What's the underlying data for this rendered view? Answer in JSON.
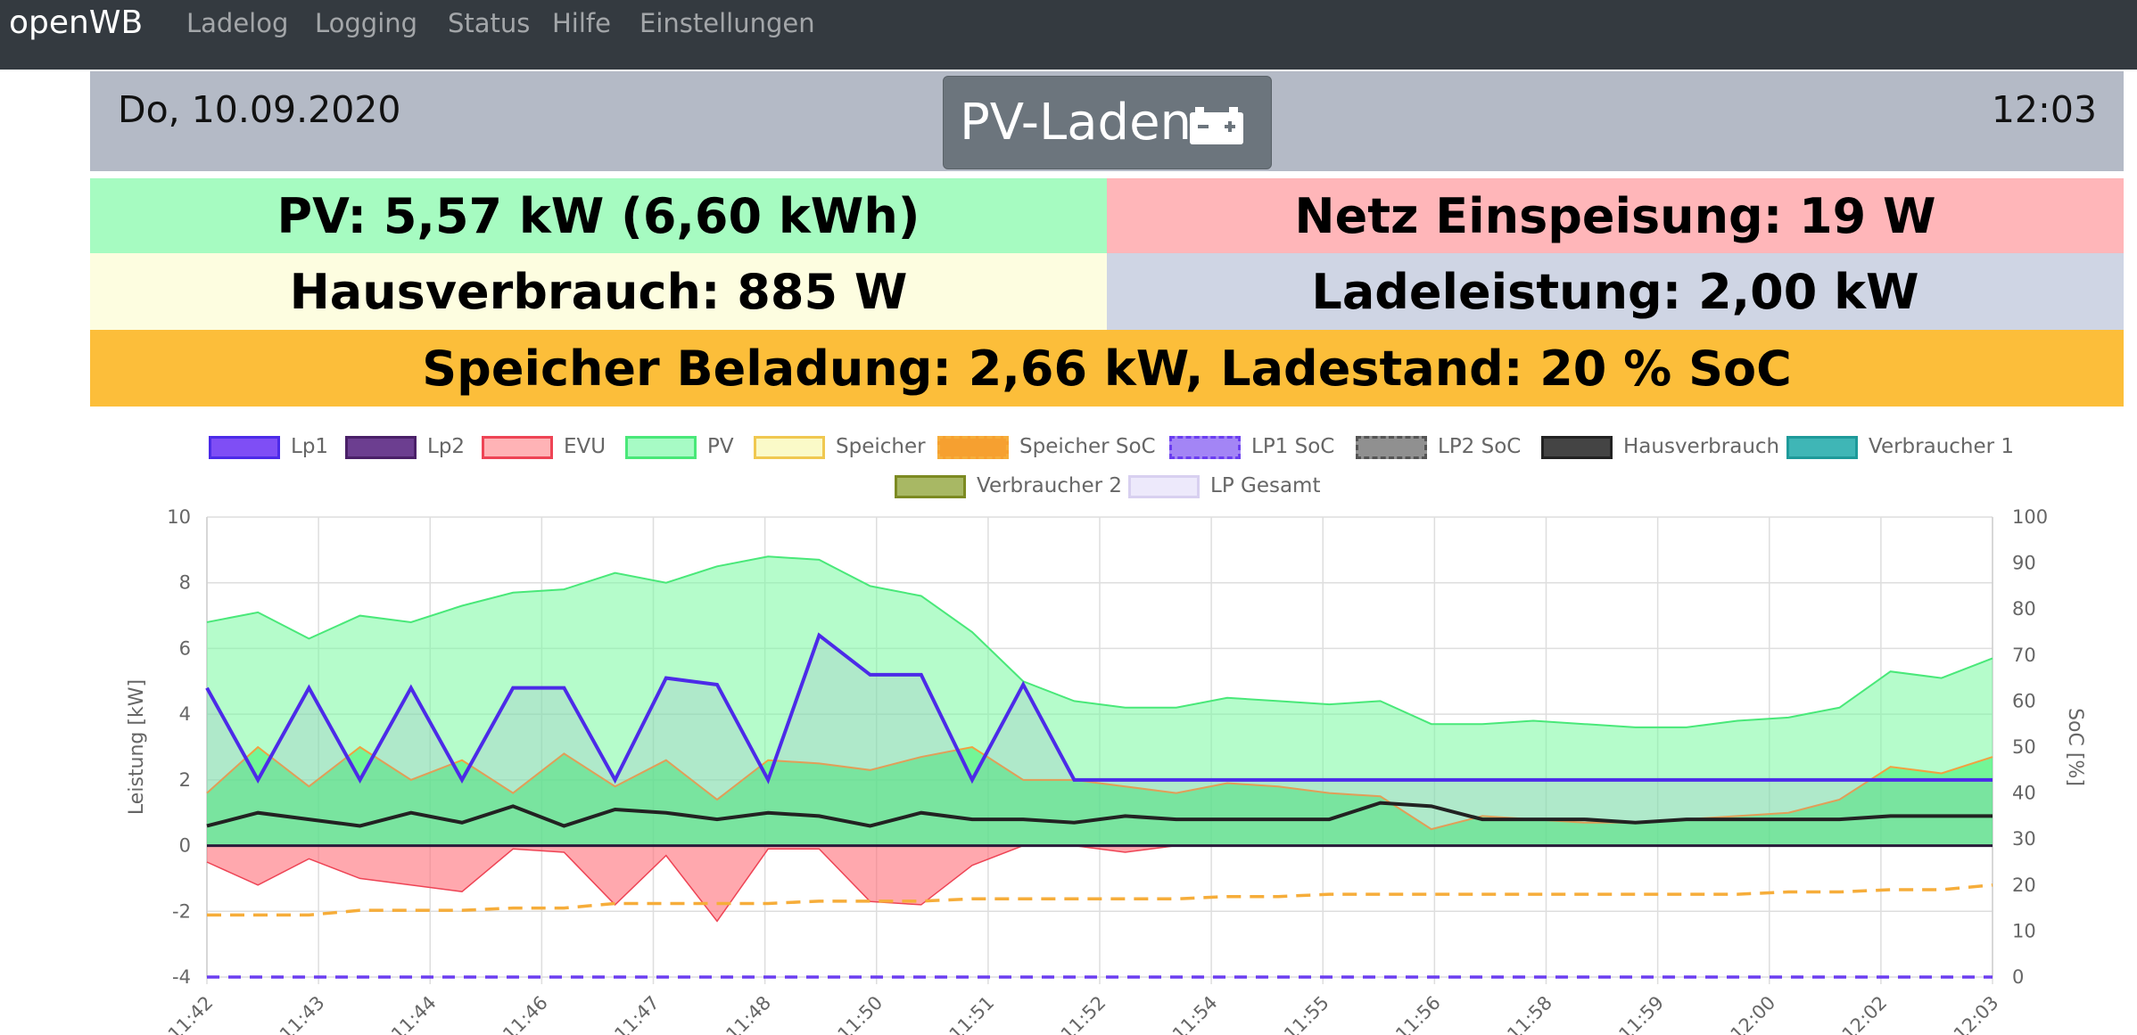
{
  "nav": {
    "brand": "openWB",
    "items": [
      "Ladelog",
      "Logging",
      "Status",
      "Hilfe",
      "Einstellungen"
    ]
  },
  "header": {
    "date": "Do, 10.09.2020",
    "time": "12:03",
    "mode_label": "PV-Laden",
    "mode_icon": "car-battery-icon"
  },
  "tiles": {
    "pv": "PV: 5,57 kW (6,60 kWh)",
    "netz": "Netz Einspeisung: 19 W",
    "haus": "Hausverbrauch: 885 W",
    "ladeleistung": "Ladeleistung: 2,00 kW",
    "speicher": "Speicher Beladung: 2,66 kW, Ladestand: 20 % SoC"
  },
  "colors": {
    "navbar": "#343a40",
    "header": "#b4bac6",
    "pv_tile": "#a6fbc1",
    "netz_tile": "#ffb6b9",
    "haus_tile": "#fdfde0",
    "lade_tile": "#cfd5e4",
    "speicher_tile": "#fcbe3a",
    "mode_button": "#6c757d"
  },
  "chart_data": {
    "type": "line",
    "xlabel": "",
    "ylabel": "Leistung [kW]",
    "y2label": "SoC [%]",
    "ylim": [
      -4,
      10
    ],
    "y2lim": [
      0,
      100
    ],
    "yticks": [
      "10",
      "8",
      "6",
      "4",
      "2",
      "0",
      "-2",
      "-4"
    ],
    "y2ticks": [
      "100",
      "90",
      "80",
      "70",
      "60",
      "50",
      "40",
      "30",
      "20",
      "10",
      "0"
    ],
    "grid": true,
    "legend_position": "top",
    "x_tick_labels": [
      "11:42",
      "11:43",
      "11:44",
      "11:46",
      "11:47",
      "11:48",
      "11:50",
      "11:51",
      "11:52",
      "11:54",
      "11:55",
      "11:56",
      "11:58",
      "11:59",
      "12:00",
      "12:02",
      "12:03"
    ],
    "legend": [
      {
        "name": "Lp1",
        "color": "#4c2be8",
        "fill": "#7f4ef5",
        "dashed": false
      },
      {
        "name": "Lp2",
        "color": "#4a2068",
        "fill": "#6c3e90",
        "dashed": false
      },
      {
        "name": "EVU",
        "color": "#ee4455",
        "fill": "#ffb3b6",
        "dashed": false
      },
      {
        "name": "PV",
        "color": "#49e879",
        "fill": "#a7fbc5",
        "dashed": false
      },
      {
        "name": "Speicher",
        "color": "#f0c850",
        "fill": "#fafac8",
        "dashed": false
      },
      {
        "name": "Speicher SoC",
        "color": "#f6ad3a",
        "fill": "#f6a030",
        "dashed": true
      },
      {
        "name": "LP1 SoC",
        "color": "#6b3ef0",
        "fill": "#a385f5",
        "dashed": true
      },
      {
        "name": "LP2 SoC",
        "color": "#555555",
        "fill": "#909090",
        "dashed": true
      },
      {
        "name": "Hausverbrauch",
        "color": "#222222",
        "fill": "#444444",
        "dashed": false
      },
      {
        "name": "Verbraucher 1",
        "color": "#1e9a9a",
        "fill": "#3fb6b6",
        "dashed": false
      },
      {
        "name": "Verbraucher 2",
        "color": "#7c8a22",
        "fill": "#a8b864",
        "dashed": false
      },
      {
        "name": "LP Gesamt",
        "color": "#d8d0f0",
        "fill": "#ede9fb",
        "dashed": false
      }
    ],
    "x": [
      0,
      0.6,
      1.2,
      1.8,
      2.4,
      3.0,
      3.6,
      4.2,
      4.8,
      5.4,
      6.0,
      6.6,
      7.2,
      7.8,
      8.4,
      9.0,
      9.6,
      10.2,
      10.8,
      11.4,
      12.0,
      12.6,
      13.2,
      13.8,
      14.4,
      15.0,
      15.6,
      16.2,
      16.8,
      17.4,
      18.0,
      18.6,
      19.2,
      19.8,
      20.4,
      21.0
    ],
    "series": [
      {
        "name": "PV",
        "values": [
          6.8,
          7.1,
          6.3,
          7.0,
          6.8,
          7.3,
          7.7,
          7.8,
          8.3,
          8.0,
          8.5,
          8.8,
          8.7,
          7.9,
          7.6,
          6.5,
          5.0,
          4.4,
          4.2,
          4.2,
          4.5,
          4.4,
          4.3,
          4.4,
          3.7,
          3.7,
          3.8,
          3.7,
          3.6,
          3.6,
          3.8,
          3.9,
          4.2,
          5.3,
          5.1,
          5.7
        ]
      },
      {
        "name": "Speicher",
        "values": [
          1.6,
          3.0,
          1.8,
          3.0,
          2.0,
          2.6,
          1.6,
          2.8,
          1.8,
          2.6,
          1.4,
          2.6,
          2.5,
          2.3,
          2.7,
          3.0,
          2.0,
          2.0,
          1.8,
          1.6,
          1.9,
          1.8,
          1.6,
          1.5,
          0.5,
          0.9,
          0.8,
          0.7,
          0.7,
          0.8,
          0.9,
          1.0,
          1.4,
          2.4,
          2.2,
          2.7
        ]
      },
      {
        "name": "Hausverbrauch",
        "values": [
          0.6,
          1.0,
          0.8,
          0.6,
          1.0,
          0.7,
          1.2,
          0.6,
          1.1,
          1.0,
          0.8,
          1.0,
          0.9,
          0.6,
          1.0,
          0.8,
          0.8,
          0.7,
          0.9,
          0.8,
          0.8,
          0.8,
          0.8,
          1.3,
          1.2,
          0.8,
          0.8,
          0.8,
          0.7,
          0.8,
          0.8,
          0.8,
          0.8,
          0.9,
          0.9,
          0.9
        ]
      },
      {
        "name": "EVU",
        "values": [
          -0.5,
          -1.2,
          -0.4,
          -1.0,
          -1.2,
          -1.4,
          -0.1,
          -0.2,
          -1.8,
          -0.3,
          -2.3,
          -0.1,
          -0.1,
          -1.7,
          -1.8,
          -0.6,
          0,
          0,
          -0.2,
          0,
          0,
          0,
          0,
          0,
          0,
          0,
          0,
          0,
          0,
          0,
          0,
          0,
          0,
          0,
          0,
          0
        ]
      },
      {
        "name": "Lp1",
        "values": [
          4.8,
          2.0,
          4.8,
          2.0,
          4.8,
          2.0,
          4.8,
          4.8,
          2.0,
          5.1,
          4.9,
          2.0,
          6.4,
          5.2,
          5.2,
          2.0,
          4.9,
          2.0,
          2.0,
          2.0,
          2.0,
          2.0,
          2.0,
          2.0,
          2.0,
          2.0,
          2.0,
          2.0,
          2.0,
          2.0,
          2.0,
          2.0,
          2.0,
          2.0,
          2.0,
          2.0
        ]
      },
      {
        "name": "Lp2",
        "values": [
          0,
          0,
          0,
          0,
          0,
          0,
          0,
          0,
          0,
          0,
          0,
          0,
          0,
          0,
          0,
          0,
          0,
          0,
          0,
          0,
          0,
          0,
          0,
          0,
          0,
          0,
          0,
          0,
          0,
          0,
          0,
          0,
          0,
          0,
          0,
          0
        ]
      },
      {
        "name": "Speicher SoC",
        "axis": "right",
        "values": [
          13.5,
          13.5,
          13.5,
          14.5,
          14.5,
          14.5,
          15,
          15,
          16,
          16,
          16,
          16,
          16.5,
          16.5,
          16.5,
          17,
          17,
          17,
          17,
          17,
          17.5,
          17.5,
          18,
          18,
          18,
          18,
          18,
          18,
          18,
          18,
          18,
          18.5,
          18.5,
          19,
          19,
          20
        ]
      },
      {
        "name": "LP1 SoC",
        "axis": "right",
        "values": [
          0,
          0,
          0,
          0,
          0,
          0,
          0,
          0,
          0,
          0,
          0,
          0,
          0,
          0,
          0,
          0,
          0,
          0,
          0,
          0,
          0,
          0,
          0,
          0,
          0,
          0,
          0,
          0,
          0,
          0,
          0,
          0,
          0,
          0,
          0,
          0
        ]
      }
    ]
  }
}
